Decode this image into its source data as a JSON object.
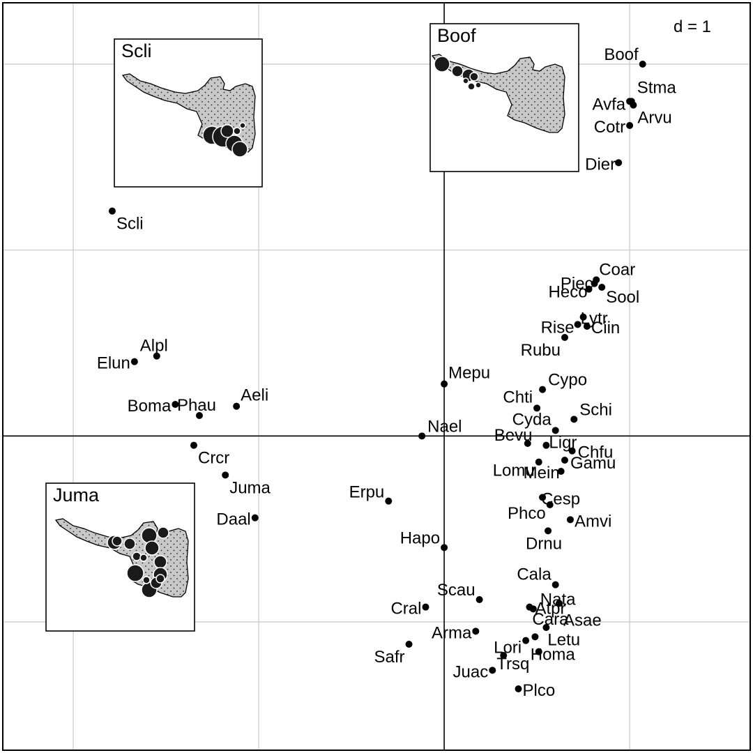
{
  "chart_data": {
    "type": "scatter",
    "scale_label": "d = 1",
    "grid": true,
    "axes_through_origin": true,
    "xlim": [
      -2.38,
      1.65
    ],
    "ylim": [
      -1.69,
      2.33
    ],
    "gridlines": {
      "x": [
        -2,
        -1,
        0,
        1
      ],
      "y": [
        -1,
        0,
        1,
        2
      ]
    },
    "colors": {
      "point": "#000000",
      "grid": "#c8c8c8",
      "axis": "#000000",
      "map_fill": "#c8c8c8",
      "circle": "#1a1a1a"
    },
    "points": [
      {
        "name": "Boof",
        "x": 1.07,
        "y": 2.0
      },
      {
        "name": "Stma",
        "x": 1.01,
        "y": 1.8
      },
      {
        "name": "Avfa",
        "x": 1.0,
        "y": 1.8
      },
      {
        "name": "Arvu",
        "x": 1.02,
        "y": 1.78
      },
      {
        "name": "Cotr",
        "x": 1.0,
        "y": 1.67
      },
      {
        "name": "Dier",
        "x": 0.94,
        "y": 1.47
      },
      {
        "name": "Scli",
        "x": -1.79,
        "y": 1.21
      },
      {
        "name": "Coar",
        "x": 0.82,
        "y": 0.84
      },
      {
        "name": "Piec",
        "x": 0.81,
        "y": 0.82
      },
      {
        "name": "Heco",
        "x": 0.78,
        "y": 0.79
      },
      {
        "name": "Sool",
        "x": 0.85,
        "y": 0.8
      },
      {
        "name": "Lytr",
        "x": 0.75,
        "y": 0.64
      },
      {
        "name": "Rise",
        "x": 0.72,
        "y": 0.6
      },
      {
        "name": "Ciin",
        "x": 0.77,
        "y": 0.59
      },
      {
        "name": "Rubu",
        "x": 0.65,
        "y": 0.53
      },
      {
        "name": "Alpl",
        "x": -1.55,
        "y": 0.43
      },
      {
        "name": "Elun",
        "x": -1.67,
        "y": 0.4
      },
      {
        "name": "Mepu",
        "x": 0.0,
        "y": 0.28
      },
      {
        "name": "Cypo",
        "x": 0.53,
        "y": 0.25
      },
      {
        "name": "Chti",
        "x": 0.5,
        "y": 0.15
      },
      {
        "name": "Schi",
        "x": 0.7,
        "y": 0.09
      },
      {
        "name": "Cyda",
        "x": 0.6,
        "y": 0.03
      },
      {
        "name": "Aeli",
        "x": -1.12,
        "y": 0.16
      },
      {
        "name": "Phau",
        "x": -1.32,
        "y": 0.11
      },
      {
        "name": "Boma",
        "x": -1.45,
        "y": 0.17
      },
      {
        "name": "Nael",
        "x": -0.12,
        "y": 0.0
      },
      {
        "name": "Bevu",
        "x": 0.45,
        "y": -0.04
      },
      {
        "name": "Ligr",
        "x": 0.55,
        "y": -0.05
      },
      {
        "name": "Chfu",
        "x": 0.69,
        "y": -0.08
      },
      {
        "name": "Lomu",
        "x": 0.51,
        "y": -0.14
      },
      {
        "name": "Gamu",
        "x": 0.65,
        "y": -0.13
      },
      {
        "name": "Mein",
        "x": 0.63,
        "y": -0.19
      },
      {
        "name": "Crcr",
        "x": -1.35,
        "y": -0.05
      },
      {
        "name": "Juma",
        "x": -1.18,
        "y": -0.21
      },
      {
        "name": "Daal",
        "x": -1.02,
        "y": -0.44
      },
      {
        "name": "Erpu",
        "x": -0.3,
        "y": -0.35
      },
      {
        "name": "Cesp",
        "x": 0.53,
        "y": -0.33
      },
      {
        "name": "Phco",
        "x": 0.57,
        "y": -0.37
      },
      {
        "name": "Amvi",
        "x": 0.68,
        "y": -0.45
      },
      {
        "name": "Drnu",
        "x": 0.56,
        "y": -0.51
      },
      {
        "name": "Hapo",
        "x": 0.0,
        "y": -0.6
      },
      {
        "name": "Cala",
        "x": 0.6,
        "y": -0.8
      },
      {
        "name": "Scau",
        "x": 0.19,
        "y": -0.88
      },
      {
        "name": "Atpr",
        "x": 0.46,
        "y": -0.92
      },
      {
        "name": "Nata",
        "x": 0.48,
        "y": -0.93
      },
      {
        "name": "Asae",
        "x": 0.62,
        "y": -0.9
      },
      {
        "name": "Cral",
        "x": -0.1,
        "y": -0.92
      },
      {
        "name": "Arma",
        "x": 0.17,
        "y": -1.05
      },
      {
        "name": "Cara",
        "x": 0.55,
        "y": -1.03
      },
      {
        "name": "Lori",
        "x": 0.44,
        "y": -1.1
      },
      {
        "name": "Letu",
        "x": 0.49,
        "y": -1.08
      },
      {
        "name": "Safr",
        "x": -0.19,
        "y": -1.12
      },
      {
        "name": "Trsq",
        "x": 0.32,
        "y": -1.18
      },
      {
        "name": "Homa",
        "x": 0.51,
        "y": -1.16
      },
      {
        "name": "Juac",
        "x": 0.26,
        "y": -1.26
      },
      {
        "name": "Plco",
        "x": 0.4,
        "y": -1.36
      }
    ],
    "insets": [
      {
        "title": "Scli",
        "position": "top-left"
      },
      {
        "title": "Boof",
        "position": "top-center-right"
      },
      {
        "title": "Juma",
        "position": "bottom-left"
      }
    ]
  }
}
